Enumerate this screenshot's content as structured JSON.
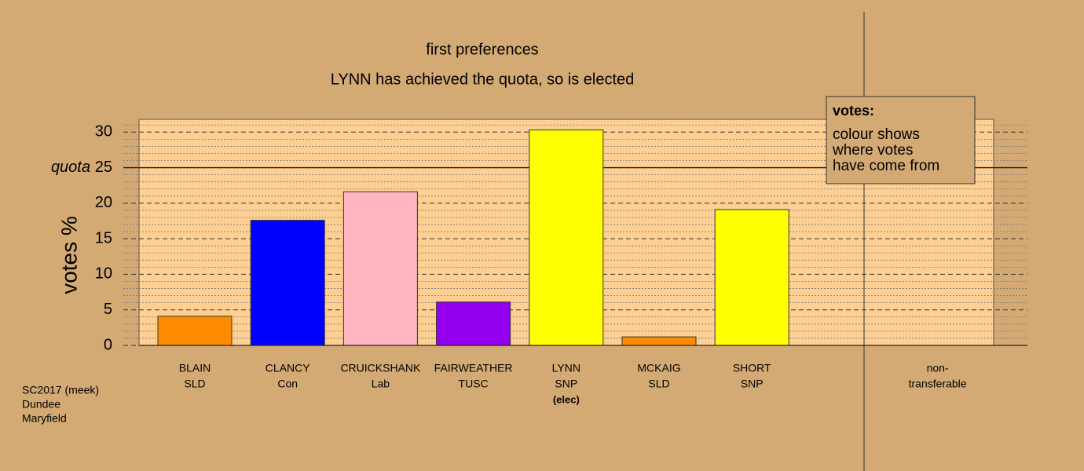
{
  "chart_data": {
    "type": "bar",
    "title": "first preferences",
    "subtitle": "LYNN has achieved the quota, so is elected",
    "y_label": "votes %",
    "categories": [
      [
        "BLAIN",
        "SLD"
      ],
      [
        "CLANCY",
        "Con"
      ],
      [
        "CRUICKSHANK",
        "Lab"
      ],
      [
        "FAIRWEATHER",
        "TUSC"
      ],
      [
        "LYNN",
        "SNP",
        "(elec)"
      ],
      [
        "MCKAIG",
        "SLD"
      ],
      [
        "SHORT",
        "SNP"
      ],
      null,
      [
        "non-",
        "transferable"
      ]
    ],
    "values": [
      4.1,
      17.6,
      21.6,
      6.1,
      30.3,
      1.2,
      19.1,
      null,
      0
    ],
    "colors": [
      "#ff8c00",
      "#0000ff",
      "#ffb6c1",
      "#9400ef",
      "#ffff00",
      "#ff8c00",
      "#ffff00",
      null,
      null
    ],
    "ylim": [
      0,
      31.8
    ],
    "yticks": [
      0,
      5,
      10,
      15,
      20,
      25,
      30
    ],
    "minor_yticks": [
      1,
      2,
      3,
      4,
      6,
      7,
      8,
      9,
      11,
      12,
      13,
      14,
      16,
      17,
      18,
      19,
      21,
      22,
      23,
      24,
      26,
      27,
      28,
      29,
      31
    ],
    "grid": true,
    "quota": {
      "value": 25,
      "label": "quota"
    },
    "legend": {
      "title": "votes:",
      "lines": [
        "colour shows",
        "where votes",
        "have come from"
      ]
    },
    "footnote": [
      "SC2017 (meek)",
      "Dundee",
      "Maryfield"
    ]
  }
}
